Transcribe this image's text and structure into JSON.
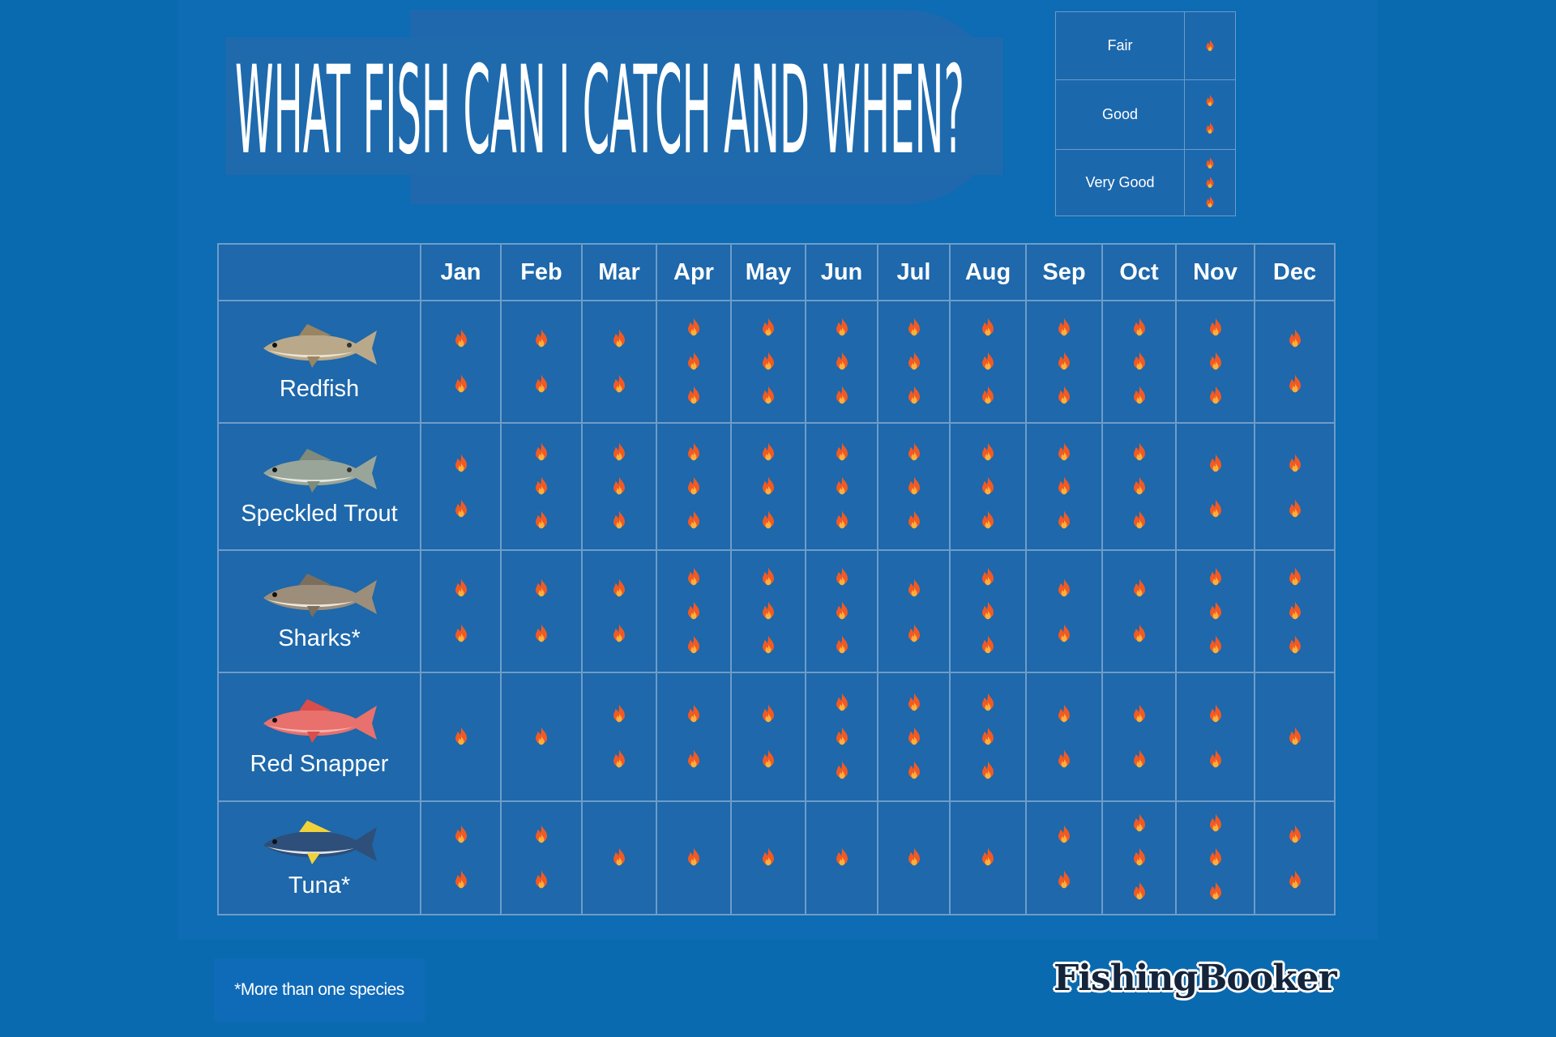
{
  "title": "WHAT FISH CAN I CATCH AND WHEN?",
  "legend": [
    {
      "label": "Fair",
      "count": 1
    },
    {
      "label": "Good",
      "count": 2
    },
    {
      "label": "Very Good",
      "count": 3
    }
  ],
  "icon": "fire-icon",
  "colors": {
    "background": "#0a6ab0",
    "cell": "#1e68ab",
    "grid_line": "#6d9dca",
    "flame_outer": "#f15a24",
    "flame_inner": "#fbb03b"
  },
  "footnote": "*More than one species",
  "logo": "FishingBooker",
  "chart_data": {
    "type": "table",
    "columns": [
      "Jan",
      "Feb",
      "Mar",
      "Apr",
      "May",
      "Jun",
      "Jul",
      "Aug",
      "Sep",
      "Oct",
      "Nov",
      "Dec"
    ],
    "value_meaning": "number of fire icons: 1 = Fair, 2 = Good, 3 = Very Good",
    "rows": [
      {
        "name": "Redfish",
        "values": [
          2,
          2,
          2,
          3,
          3,
          3,
          3,
          3,
          3,
          3,
          3,
          2
        ]
      },
      {
        "name": "Speckled Trout",
        "values": [
          2,
          3,
          3,
          3,
          3,
          3,
          3,
          3,
          3,
          3,
          2,
          2
        ]
      },
      {
        "name": "Sharks*",
        "values": [
          2,
          2,
          2,
          3,
          3,
          3,
          2,
          3,
          2,
          2,
          3,
          3
        ]
      },
      {
        "name": "Red Snapper",
        "values": [
          1,
          1,
          2,
          2,
          2,
          3,
          3,
          3,
          2,
          2,
          2,
          1
        ]
      },
      {
        "name": "Tuna*",
        "values": [
          2,
          2,
          1,
          1,
          1,
          1,
          1,
          1,
          2,
          3,
          3,
          2
        ]
      }
    ]
  }
}
